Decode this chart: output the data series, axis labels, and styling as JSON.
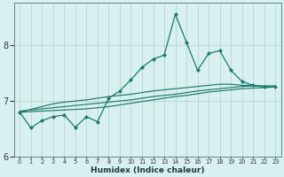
{
  "xlabel": "Humidex (Indice chaleur)",
  "background_color": "#d8f0f0",
  "grid_color": "#b8d4d4",
  "line_color": "#1a7a6a",
  "x_values": [
    0,
    1,
    2,
    3,
    4,
    5,
    6,
    7,
    8,
    9,
    10,
    11,
    12,
    13,
    14,
    15,
    16,
    17,
    18,
    19,
    20,
    21,
    22,
    23
  ],
  "line1": [
    6.8,
    6.52,
    6.65,
    6.72,
    6.75,
    6.53,
    6.72,
    6.63,
    7.05,
    7.18,
    7.38,
    7.6,
    7.75,
    7.82,
    8.55,
    8.05,
    7.55,
    7.85,
    7.9,
    7.55,
    7.35,
    7.28,
    7.25,
    7.25
  ],
  "line2": [
    6.8,
    6.85,
    6.9,
    6.95,
    6.98,
    7.0,
    7.02,
    7.05,
    7.08,
    7.1,
    7.12,
    7.15,
    7.18,
    7.2,
    7.22,
    7.24,
    7.26,
    7.28,
    7.3,
    7.3,
    7.28,
    7.28,
    7.26,
    7.25
  ],
  "line3": [
    6.82,
    6.84,
    6.86,
    6.88,
    6.9,
    6.92,
    6.94,
    6.96,
    6.98,
    7.0,
    7.02,
    7.05,
    7.08,
    7.1,
    7.12,
    7.15,
    7.18,
    7.2,
    7.22,
    7.24,
    7.26,
    7.27,
    7.27,
    7.27
  ],
  "line4": [
    6.8,
    6.81,
    6.82,
    6.83,
    6.84,
    6.85,
    6.86,
    6.88,
    6.9,
    6.93,
    6.96,
    6.99,
    7.02,
    7.05,
    7.08,
    7.1,
    7.13,
    7.16,
    7.18,
    7.2,
    7.22,
    7.23,
    7.24,
    7.25
  ],
  "ylim": [
    6.0,
    8.75
  ],
  "yticks": [
    6,
    7,
    8
  ],
  "xlim": [
    -0.5,
    23.5
  ]
}
